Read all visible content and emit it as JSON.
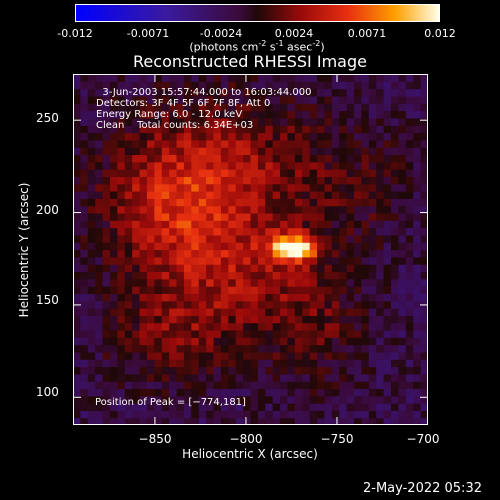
{
  "colorbar": {
    "ticks": [
      "-0.012",
      "-0.0071",
      "-0.0024",
      "0.0024",
      "0.0071",
      "0.012"
    ],
    "unit_parts": [
      "(photons cm",
      "-2",
      " s",
      "-1",
      " asec",
      "-2",
      ")"
    ],
    "range": [
      -0.012,
      0.012
    ]
  },
  "chart_data": {
    "type": "heatmap",
    "title": "Reconstructed RHESSI Image",
    "xlabel": "Heliocentric X (arcsec)",
    "ylabel": "Heliocentric Y (arcsec)",
    "xlim": [
      -895,
      -700
    ],
    "ylim": [
      85,
      275
    ],
    "xticks": [
      -850,
      -800,
      -750,
      -700
    ],
    "xtick_labels": [
      "−850",
      "−800",
      "−750",
      "−700"
    ],
    "yticks": [
      100,
      150,
      200,
      250
    ],
    "ytick_labels": [
      "100",
      "150",
      "200",
      "250"
    ],
    "peak": [
      -774,
      181
    ],
    "colormap": "blue-purple-red-yellow-white",
    "sources": [
      {
        "x": -774,
        "y": 181,
        "sx": 9,
        "sy": 5,
        "amp": 0.0125
      },
      {
        "x": -840,
        "y": 205,
        "sx": 28,
        "sy": 30,
        "amp": 0.0052
      },
      {
        "x": -805,
        "y": 162,
        "sx": 32,
        "sy": 25,
        "amp": 0.0038
      },
      {
        "x": -800,
        "y": 225,
        "sx": 38,
        "sy": 28,
        "amp": 0.0036
      },
      {
        "x": -845,
        "y": 130,
        "sx": 22,
        "sy": 18,
        "amp": 0.0028
      },
      {
        "x": -760,
        "y": 140,
        "sx": 20,
        "sy": 25,
        "amp": 0.0022
      },
      {
        "x": -735,
        "y": 215,
        "sx": 18,
        "sy": 22,
        "amp": 0.0016
      }
    ]
  },
  "annotations": {
    "time_range": "  3-Jun-2003 15:57:44.000 to 16:03:44.000",
    "detectors": "Detectors: 3F 4F 5F 6F 7F 8F, Att 0",
    "energy": "Energy Range: 6.0 - 12.0 keV",
    "clean": "Clean    Total counts: 6.34E+03",
    "peak_label": "Position of Peak = [−774,181]"
  },
  "plot_date": "2-May-2022 05:32"
}
